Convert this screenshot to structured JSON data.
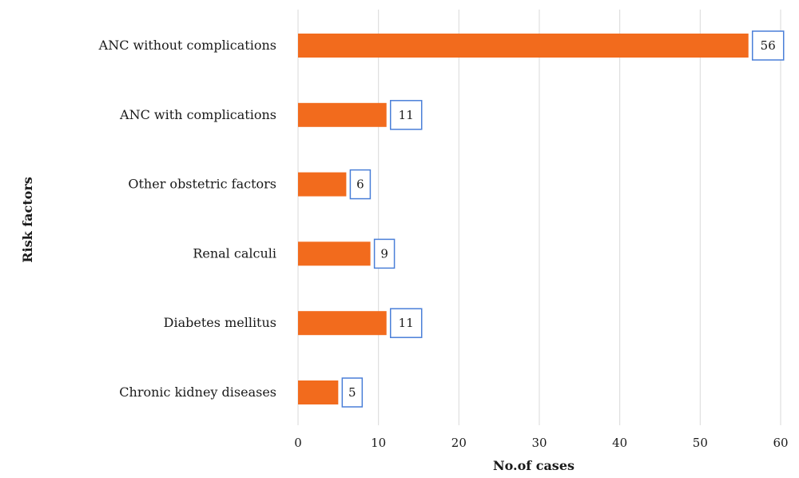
{
  "colors": {
    "bar": "#F26B1D",
    "label_border": "#4A7FD8",
    "gridline": "#D9D9D9"
  },
  "chart_data": {
    "type": "bar",
    "orientation": "horizontal",
    "categories": [
      "ANC without complications",
      "ANC with complications",
      "Other obstetric factors",
      "Renal calculi",
      "Diabetes mellitus",
      "Chronic kidney diseases"
    ],
    "values": [
      56,
      11,
      6,
      9,
      11,
      5
    ],
    "data_labels": [
      "56",
      "11",
      "6",
      "9",
      "11",
      "5"
    ],
    "xlabel": "No.of cases",
    "ylabel": "Risk factors",
    "xlim": [
      0,
      60
    ],
    "xticks": [
      0,
      10,
      20,
      30,
      40,
      50,
      60
    ],
    "xtick_labels": [
      "0",
      "10",
      "20",
      "30",
      "40",
      "50",
      "60"
    ],
    "grid": "vertical",
    "legend": "none"
  }
}
